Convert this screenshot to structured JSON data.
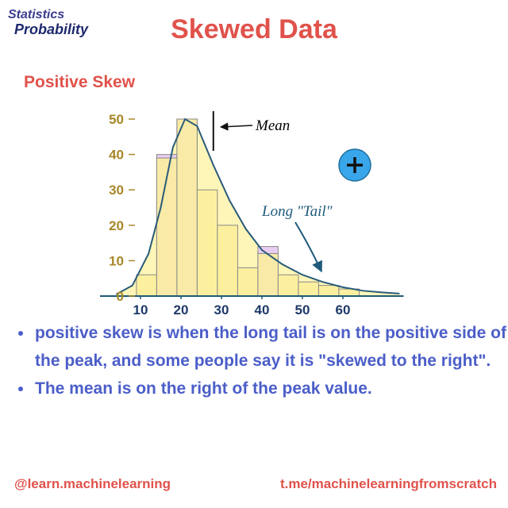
{
  "header": {
    "logo": [
      "Statistics",
      "Probability"
    ],
    "title": "Skewed Data"
  },
  "subtitle": "Positive Skew",
  "chart_data": {
    "type": "histogram",
    "bins": [
      9,
      14,
      19,
      24,
      29,
      34,
      39,
      44,
      49,
      54,
      59,
      64
    ],
    "series": [
      {
        "color": "#e9cdf0",
        "values": [
          null,
          40,
          50,
          null,
          null,
          null,
          14,
          null,
          null,
          null,
          null
        ]
      },
      {
        "color": "#fbef9a",
        "values": [
          6,
          39,
          50,
          30,
          20,
          8,
          12,
          6,
          4,
          3,
          2
        ]
      }
    ],
    "curve": {
      "color": "#2a5b7a",
      "fill": "#fdf6b8",
      "x": [
        4,
        8,
        12,
        15,
        18,
        21,
        24,
        28,
        32,
        36,
        40,
        45,
        50,
        55,
        60,
        65,
        70,
        74
      ],
      "y": [
        0.5,
        3,
        12,
        25,
        42,
        50,
        48,
        37,
        27,
        19,
        13,
        9,
        6,
        4,
        2.5,
        1.5,
        1,
        0.7
      ]
    },
    "mean": 28,
    "xlim": [
      0,
      75
    ],
    "ylim": [
      0,
      50
    ],
    "xticks": [
      10,
      20,
      30,
      40,
      50,
      60
    ],
    "yticks": [
      0,
      10,
      20,
      30,
      40,
      50
    ],
    "annotations": [
      "Mean",
      "Long \"Tail\""
    ]
  },
  "bullets": [
    "positive skew is when the long tail is on the positive side of the peak, and some people say it is \"skewed to the right\".",
    "The mean is on the right of the peak value."
  ],
  "footer": {
    "left": "@learn.machinelearning",
    "right": "t.me/machinelearningfromscratch"
  }
}
